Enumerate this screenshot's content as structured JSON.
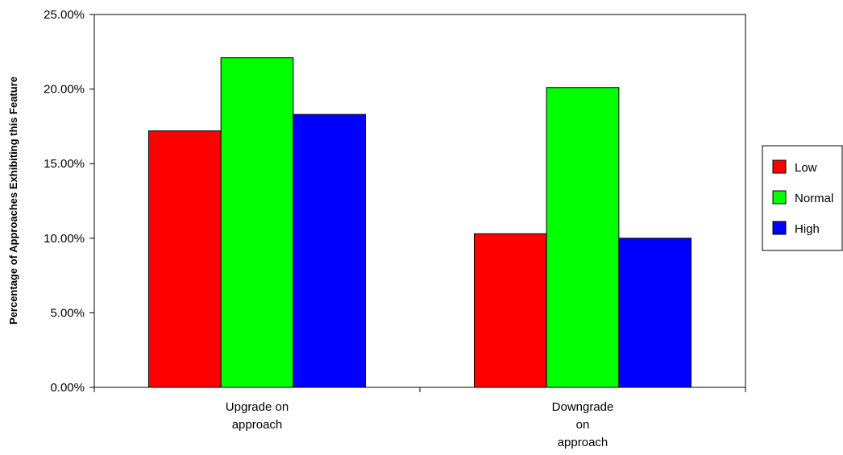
{
  "chart_data": {
    "type": "bar",
    "title": "",
    "xlabel": "",
    "ylabel": "Percentage of Approaches Exhibiting this Feature",
    "categories": [
      [
        "Upgrade on",
        "approach"
      ],
      [
        "Downgrade",
        "on",
        "approach"
      ]
    ],
    "series": [
      {
        "name": "Low",
        "color": "#ff0000",
        "values": [
          17.2,
          10.3
        ]
      },
      {
        "name": "Normal",
        "color": "#00ff00",
        "values": [
          22.1,
          20.1
        ]
      },
      {
        "name": "High",
        "color": "#0000ff",
        "values": [
          18.3,
          10.0
        ]
      }
    ],
    "ylim": [
      0,
      25
    ],
    "yticks": [
      "0.00%",
      "5.00%",
      "10.00%",
      "15.00%",
      "20.00%",
      "25.00%"
    ],
    "grid": false,
    "legend": "right"
  }
}
